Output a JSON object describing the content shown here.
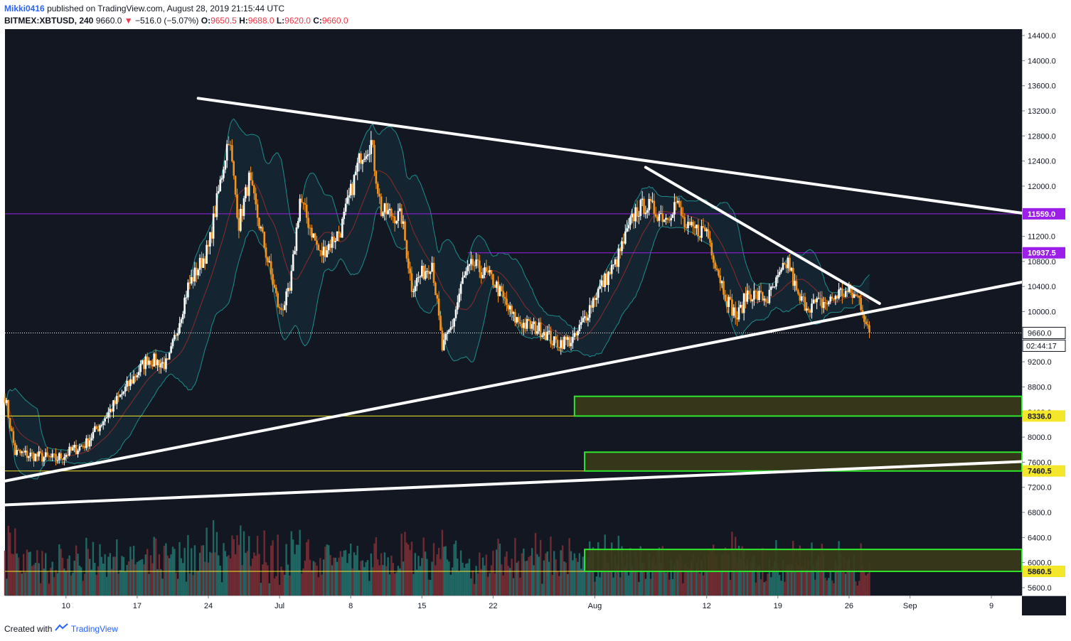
{
  "header": {
    "publisher": "Mikki0416",
    "published_text": "published on TradingView.com, August 28, 2019 21:15:44 UTC",
    "symbol": "BITMEX:XBTUSD, 240",
    "last": "9660.0",
    "change": "−516.0 (−5.07%)",
    "o_label": "O:",
    "o_value": "9650.5",
    "h_label": "H:",
    "h_value": "9688.0",
    "l_label": "L:",
    "l_value": "9620.0",
    "c_label": "C:",
    "c_value": "9660.0"
  },
  "footer": {
    "created_with": "Created with",
    "brand": "TradingView"
  },
  "colors": {
    "background": "#131722",
    "candle_up": "#ffffff",
    "candle_down": "#f7931a",
    "purple_level": "#9b1fe8",
    "yellow_level": "#f3e62b",
    "green_zone": "#2ee62b",
    "trendline": "#ffffff",
    "bollinger": "#1e8c8c"
  },
  "chart_data": {
    "type": "candlestick",
    "symbol": "BITMEX:XBTUSD",
    "timeframe": "240",
    "ylim": [
      5480,
      14500
    ],
    "y_ticks": [
      "5600.0",
      "6000.0",
      "6400.0",
      "6800.0",
      "7200.0",
      "7600.0",
      "8000.0",
      "8400.0",
      "8800.0",
      "9200.0",
      "10000.0",
      "10400.0",
      "10800.0",
      "11200.0",
      "12000.0",
      "12400.0",
      "12800.0",
      "13200.0",
      "13600.0",
      "14000.0",
      "14400.0"
    ],
    "x_ticks": [
      {
        "label": "10",
        "date": "2019-06-10"
      },
      {
        "label": "17",
        "date": "2019-06-17"
      },
      {
        "label": "24",
        "date": "2019-06-24"
      },
      {
        "label": "Jul",
        "date": "2019-07-01"
      },
      {
        "label": "8",
        "date": "2019-07-08"
      },
      {
        "label": "15",
        "date": "2019-07-15"
      },
      {
        "label": "22",
        "date": "2019-07-22"
      },
      {
        "label": "Aug",
        "date": "2019-08-01"
      },
      {
        "label": "12",
        "date": "2019-08-12"
      },
      {
        "label": "19",
        "date": "2019-08-19"
      },
      {
        "label": "26",
        "date": "2019-08-26"
      },
      {
        "label": "Sep",
        "date": "2019-09-01"
      },
      {
        "label": "9",
        "date": "2019-09-09"
      }
    ],
    "x_range": [
      "2019-06-04",
      "2019-09-12"
    ],
    "price_keypoints": [
      {
        "date": "2019-06-04",
        "close": 8650
      },
      {
        "date": "2019-06-05",
        "close": 7750
      },
      {
        "date": "2019-06-07",
        "close": 7700
      },
      {
        "date": "2019-06-09",
        "close": 7650
      },
      {
        "date": "2019-06-12",
        "close": 7900
      },
      {
        "date": "2019-06-16",
        "close": 8800
      },
      {
        "date": "2019-06-18",
        "close": 9250
      },
      {
        "date": "2019-06-20",
        "close": 9150
      },
      {
        "date": "2019-06-22",
        "close": 10400
      },
      {
        "date": "2019-06-24",
        "close": 11000
      },
      {
        "date": "2019-06-26",
        "close": 12800
      },
      {
        "date": "2019-06-27",
        "close": 11400
      },
      {
        "date": "2019-06-28",
        "close": 12100
      },
      {
        "date": "2019-06-30",
        "close": 10700
      },
      {
        "date": "2019-07-01",
        "close": 10000
      },
      {
        "date": "2019-07-02",
        "close": 10300
      },
      {
        "date": "2019-07-03",
        "close": 11800
      },
      {
        "date": "2019-07-05",
        "close": 10900
      },
      {
        "date": "2019-07-07",
        "close": 11300
      },
      {
        "date": "2019-07-09",
        "close": 12500
      },
      {
        "date": "2019-07-10",
        "close": 12700
      },
      {
        "date": "2019-07-11",
        "close": 11600
      },
      {
        "date": "2019-07-13",
        "close": 11500
      },
      {
        "date": "2019-07-14",
        "close": 10400
      },
      {
        "date": "2019-07-16",
        "close": 10800
      },
      {
        "date": "2019-07-17",
        "close": 9400
      },
      {
        "date": "2019-07-18",
        "close": 9800
      },
      {
        "date": "2019-07-19",
        "close": 10500
      },
      {
        "date": "2019-07-20",
        "close": 10750
      },
      {
        "date": "2019-07-22",
        "close": 10500
      },
      {
        "date": "2019-07-24",
        "close": 9900
      },
      {
        "date": "2019-07-25",
        "close": 9800
      },
      {
        "date": "2019-07-27",
        "close": 9700
      },
      {
        "date": "2019-07-28",
        "close": 9500
      },
      {
        "date": "2019-07-30",
        "close": 9550
      },
      {
        "date": "2019-08-01",
        "close": 10250
      },
      {
        "date": "2019-08-03",
        "close": 10750
      },
      {
        "date": "2019-08-05",
        "close": 11600
      },
      {
        "date": "2019-08-06",
        "close": 11700
      },
      {
        "date": "2019-08-07",
        "close": 11600
      },
      {
        "date": "2019-08-08",
        "close": 11500
      },
      {
        "date": "2019-08-09",
        "close": 11750
      },
      {
        "date": "2019-08-10",
        "close": 11300
      },
      {
        "date": "2019-08-12",
        "close": 11300
      },
      {
        "date": "2019-08-13",
        "close": 10700
      },
      {
        "date": "2019-08-14",
        "close": 10200
      },
      {
        "date": "2019-08-15",
        "close": 9900
      },
      {
        "date": "2019-08-16",
        "close": 10300
      },
      {
        "date": "2019-08-18",
        "close": 10200
      },
      {
        "date": "2019-08-19",
        "close": 10500
      },
      {
        "date": "2019-08-20",
        "close": 10800
      },
      {
        "date": "2019-08-21",
        "close": 10200
      },
      {
        "date": "2019-08-22",
        "close": 10100
      },
      {
        "date": "2019-08-24",
        "close": 10150
      },
      {
        "date": "2019-08-25",
        "close": 10300
      },
      {
        "date": "2019-08-26",
        "close": 10300
      },
      {
        "date": "2019-08-27",
        "close": 10200
      },
      {
        "date": "2019-08-28",
        "close": 9660
      }
    ],
    "price_levels": [
      {
        "value": 11559.0,
        "label": "11559.0",
        "color": "purple"
      },
      {
        "value": 10937.5,
        "label": "10937.5",
        "color": "purple"
      },
      {
        "value": 8336.0,
        "label": "8336.0",
        "color": "yellow"
      },
      {
        "value": 7460.5,
        "label": "7460.5",
        "color": "yellow"
      },
      {
        "value": 5860.5,
        "label": "5860.5",
        "color": "yellow"
      }
    ],
    "current_price": {
      "value": 9660.0,
      "label": "9660.0",
      "countdown": "02:44:17"
    },
    "zones": [
      {
        "from": 8336,
        "to": 8650,
        "start": "2019-07-30"
      },
      {
        "from": 7460,
        "to": 7760,
        "start": "2019-07-31"
      },
      {
        "from": 5860,
        "to": 6210,
        "start": "2019-07-31"
      }
    ],
    "trendlines": [
      {
        "from": {
          "date": "2019-06-23",
          "price": 13400
        },
        "to": {
          "date": "2019-09-12",
          "price": 11570
        }
      },
      {
        "from": {
          "date": "2019-06-04",
          "price": 7300
        },
        "to": {
          "date": "2019-09-12",
          "price": 10470
        }
      },
      {
        "from": {
          "date": "2019-06-04",
          "price": 6920
        },
        "to": {
          "date": "2019-09-12",
          "price": 7610
        }
      },
      {
        "from": {
          "date": "2019-08-06",
          "price": 12300
        },
        "to": {
          "date": "2019-08-29",
          "price": 10130
        }
      }
    ]
  }
}
